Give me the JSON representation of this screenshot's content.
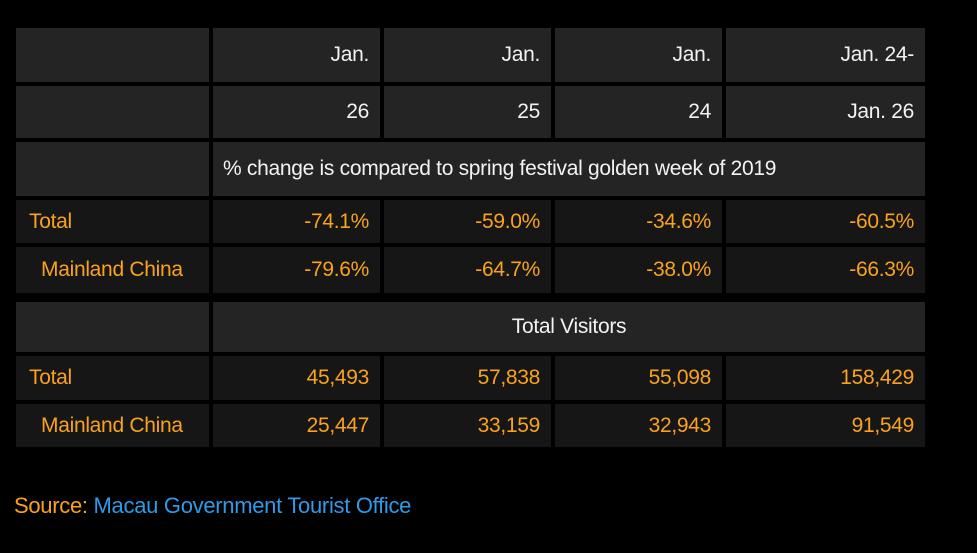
{
  "colors": {
    "page_bg": "#000000",
    "header_cell_bg": "#242424",
    "data_cell_bg": "#161616",
    "header_text": "#f2f2f2",
    "value_text_orange": "#faa21e",
    "source_link_blue": "#2e9ae8"
  },
  "table": {
    "header_top": [
      "Jan.",
      "Jan.",
      "Jan.",
      "Jan. 24-"
    ],
    "header_bottom": [
      "26",
      "25",
      "24",
      "Jan. 26"
    ],
    "pct_note": "% change is compared to spring festival golden week of 2019",
    "rows_pct": [
      {
        "label": "Total",
        "values": [
          "-74.1%",
          "-59.0%",
          "-34.6%",
          "-60.5%"
        ]
      },
      {
        "label": "Mainland China",
        "values": [
          "-79.6%",
          "-64.7%",
          "-38.0%",
          "-66.3%"
        ]
      }
    ],
    "visitors_title": "Total Visitors",
    "rows_visitors": [
      {
        "label": "Total",
        "values": [
          "45,493",
          "57,838",
          "55,098",
          "158,429"
        ]
      },
      {
        "label": "Mainland China",
        "values": [
          "25,447",
          "33,159",
          "32,943",
          "91,549"
        ]
      }
    ]
  },
  "footer": {
    "source_label": "Source:",
    "source_value": "Macau Government Tourist Office"
  },
  "chart_data": {
    "type": "table",
    "title": "",
    "columns": [
      "",
      "Jan. 26",
      "Jan. 25",
      "Jan. 24",
      "Jan. 24-Jan. 26"
    ],
    "sections": [
      {
        "title": "% change is compared to spring festival golden week of 2019",
        "unit": "%",
        "rows": [
          {
            "label": "Total",
            "values": [
              -74.1,
              -59.0,
              -34.6,
              -60.5
            ]
          },
          {
            "label": "Mainland China",
            "values": [
              -79.6,
              -64.7,
              -38.0,
              -66.3
            ]
          }
        ]
      },
      {
        "title": "Total Visitors",
        "unit": "visitors",
        "rows": [
          {
            "label": "Total",
            "values": [
              45493,
              57838,
              55098,
              158429
            ]
          },
          {
            "label": "Mainland China",
            "values": [
              25447,
              33159,
              32943,
              91549
            ]
          }
        ]
      }
    ],
    "source": "Macau Government Tourist Office"
  }
}
